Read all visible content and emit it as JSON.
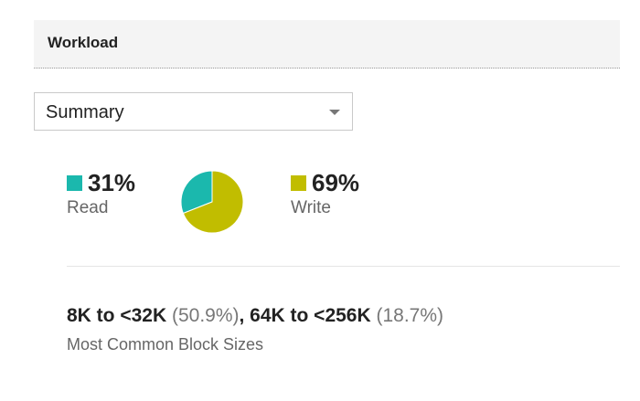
{
  "panel": {
    "title": "Workload"
  },
  "view_select": {
    "value": "Summary"
  },
  "colors": {
    "read": "#1bb8ad",
    "write": "#c1bd00",
    "pie_border": "#ffffff"
  },
  "stats": {
    "read": {
      "percent": "31%",
      "label": "Read",
      "value": 31
    },
    "write": {
      "percent": "69%",
      "label": "Write",
      "value": 69
    }
  },
  "block_sizes": {
    "first_size": "8K to <32K",
    "first_pct": "(50.9%)",
    "separator": ", ",
    "second_size": "64K to <256K",
    "second_pct": "(18.7%)",
    "label": "Most Common Block Sizes"
  },
  "icons": {
    "dropdown": "chevron-down-icon"
  }
}
